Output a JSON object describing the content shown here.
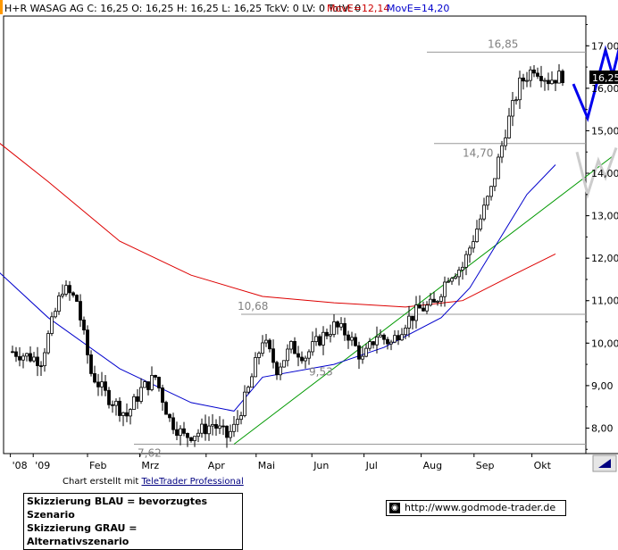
{
  "header": {
    "title": "H+R WASAG AG C: 16,25 O: 16,25 H: 16,25 L: 16,25 TckV: 0 LV: 0 TotV: 0",
    "move1": "MovE=12,14",
    "move2": "MovE=14,20",
    "move1_color": "#cc0000",
    "move2_color": "#0000cc"
  },
  "price_badge": "16,25",
  "credit": {
    "prefix": "Chart erstellt mit ",
    "link": "TeleTrader Professional"
  },
  "legend": {
    "blue": "Skizzierung BLAU = bevorzugtes Szenario",
    "gray": "Skizzierung GRAU = Alternativszenario"
  },
  "website": "http://www.godmode-trader.de",
  "colors": {
    "candle": "#000000",
    "ma_long": "#dd0000",
    "ma_short": "#0000cc",
    "trendline": "#009900",
    "support_line": "#999999",
    "scenario_blue": "#0000ee",
    "scenario_gray": "#cccccc"
  },
  "chart_data": {
    "type": "candlestick",
    "x_labels": [
      "'08",
      "'09",
      "Feb",
      "Mrz",
      "Apr",
      "Mai",
      "Jun",
      "Jul",
      "Aug",
      "Sep",
      "Okt"
    ],
    "y_ticks": [
      "8,00",
      "9,00",
      "10,00",
      "11,00",
      "12,00",
      "13,00",
      "14,00",
      "15,00",
      "16,00",
      "17,00"
    ],
    "ylim": [
      7.4,
      17.7
    ],
    "annotations": [
      {
        "label": "16,85",
        "value": 16.85
      },
      {
        "label": "14,70",
        "value": 14.7
      },
      {
        "label": "10,68",
        "value": 10.68
      },
      {
        "label": "9,53",
        "value": 9.53
      },
      {
        "label": "7,62",
        "value": 7.62
      }
    ],
    "close_path": [
      [
        0,
        9.8
      ],
      [
        4,
        9.6
      ],
      [
        7,
        11.3
      ],
      [
        9,
        11.0
      ],
      [
        11,
        9.3
      ],
      [
        13,
        8.8
      ],
      [
        16,
        8.3
      ],
      [
        18,
        8.9
      ],
      [
        20,
        9.2
      ],
      [
        22,
        8.2
      ],
      [
        24,
        7.8
      ],
      [
        26,
        7.9
      ],
      [
        28,
        8.1
      ],
      [
        30,
        7.8
      ],
      [
        31,
        8.0
      ],
      [
        33,
        8.9
      ],
      [
        35,
        10.1
      ],
      [
        37,
        9.4
      ],
      [
        39,
        9.9
      ],
      [
        41,
        9.7
      ],
      [
        43,
        10.1
      ],
      [
        45,
        10.4
      ],
      [
        47,
        10.2
      ],
      [
        49,
        9.6
      ],
      [
        51,
        10.2
      ],
      [
        53,
        10.0
      ],
      [
        55,
        10.5
      ],
      [
        57,
        10.8
      ],
      [
        59,
        10.9
      ],
      [
        61,
        11.6
      ],
      [
        63,
        11.8
      ],
      [
        65,
        12.7
      ],
      [
        67,
        13.6
      ],
      [
        69,
        15.0
      ],
      [
        71,
        16.1
      ],
      [
        73,
        16.5
      ],
      [
        75,
        16.2
      ],
      [
        77,
        16.3
      ]
    ],
    "ma_long": [
      [
        -4,
        15.0
      ],
      [
        5,
        13.8
      ],
      [
        15,
        12.4
      ],
      [
        25,
        11.6
      ],
      [
        35,
        11.1
      ],
      [
        45,
        10.95
      ],
      [
        55,
        10.85
      ],
      [
        63,
        11.0
      ],
      [
        70,
        11.6
      ],
      [
        76,
        12.1
      ]
    ],
    "ma_short": [
      [
        -4,
        12.0
      ],
      [
        5,
        10.6
      ],
      [
        15,
        9.4
      ],
      [
        25,
        8.6
      ],
      [
        31,
        8.4
      ],
      [
        35,
        9.2
      ],
      [
        45,
        9.5
      ],
      [
        52,
        9.9
      ],
      [
        60,
        10.6
      ],
      [
        64,
        11.3
      ],
      [
        68,
        12.4
      ],
      [
        72,
        13.5
      ],
      [
        76,
        14.2
      ]
    ],
    "trendline": [
      [
        31,
        7.62
      ],
      [
        84,
        14.4
      ]
    ],
    "support_levels": [
      16.85,
      14.7,
      10.68,
      7.62
    ],
    "scenario_blue": [
      [
        78.5,
        16.1
      ],
      [
        80.5,
        15.3
      ],
      [
        83,
        16.9
      ],
      [
        84,
        16.3
      ],
      [
        85,
        17.0
      ],
      [
        86,
        17.7
      ]
    ],
    "scenario_gray": [
      [
        79,
        14.5
      ],
      [
        80.5,
        13.5
      ],
      [
        82,
        14.3
      ],
      [
        83,
        13.9
      ],
      [
        84.5,
        14.6
      ]
    ],
    "last_price": 16.25
  }
}
